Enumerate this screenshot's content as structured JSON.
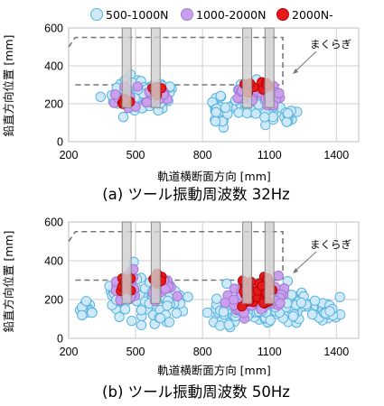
{
  "legend": [
    {
      "label": "500-1000N",
      "fill": "#cfe9f7",
      "stroke": "#57b4e0"
    },
    {
      "label": "1000-2000N",
      "fill": "#c9a0eb",
      "stroke": "#a678d6"
    },
    {
      "label": "2000N-",
      "fill": "#e41a1c",
      "stroke": "#c00000"
    }
  ],
  "colors": {
    "grid": "#cfcfcf",
    "pillar_fill": "#cfcfcf",
    "pillar_stroke": "#8a8a8a",
    "dashed": "#777777"
  },
  "chart_data": [
    {
      "type": "scatter",
      "caption": "(a) ツール振動周波数 32Hz",
      "xlabel": "軌道横断面方向 [mm]",
      "ylabel": "鉛直方向位置 [mm]",
      "xlim": [
        200,
        1500
      ],
      "ylim": [
        0,
        600
      ],
      "xticks": [
        200,
        500,
        800,
        1100,
        1400
      ],
      "yticks": [
        0,
        200,
        400,
        600
      ],
      "grid": true,
      "legend_position": "top",
      "annotation": "まくらぎ",
      "sleeper_outline_mm": {
        "x": [
          200,
          230,
          1160,
          1160
        ],
        "y": [
          500,
          550,
          550,
          300
        ],
        "base_x": [
          230,
          1160
        ],
        "base_y": 300
      },
      "pillars_x_mm": [
        [
          440,
          480
        ],
        [
          570,
          610
        ],
        [
          980,
          1020
        ],
        [
          1080,
          1120
        ]
      ],
      "pillar_y_mm": [
        180,
        600
      ],
      "series": [
        {
          "name": "500-1000N",
          "count": 200,
          "clusters": [
            [
              440,
              240,
              60,
              80
            ],
            [
              520,
              250,
              60,
              80
            ],
            [
              620,
              230,
              50,
              70
            ],
            [
              880,
              160,
              50,
              60
            ],
            [
              1000,
              220,
              60,
              80
            ],
            [
              1100,
              200,
              60,
              80
            ],
            [
              1190,
              140,
              40,
              40
            ]
          ]
        },
        {
          "name": "1000-2000N",
          "count": 70,
          "clusters": [
            [
              450,
              230,
              40,
              45
            ],
            [
              580,
              240,
              50,
              45
            ],
            [
              1000,
              250,
              50,
              45
            ],
            [
              1110,
              240,
              40,
              40
            ]
          ]
        },
        {
          "name": "2000N-",
          "count": 22,
          "clusters": [
            [
              450,
              230,
              25,
              40
            ],
            [
              590,
              280,
              25,
              40
            ],
            [
              1000,
              290,
              30,
              30
            ],
            [
              1080,
              290,
              30,
              30
            ]
          ]
        }
      ]
    },
    {
      "type": "scatter",
      "caption": "(b) ツール振動周波数 50Hz",
      "xlabel": "軌道横断面方向 [mm]",
      "ylabel": "鉛直方向位置 [mm]",
      "xlim": [
        200,
        1500
      ],
      "ylim": [
        0,
        600
      ],
      "xticks": [
        200,
        500,
        800,
        1100,
        1400
      ],
      "yticks": [
        0,
        200,
        400,
        600
      ],
      "grid": true,
      "legend_position": "top",
      "annotation": "まくらぎ",
      "sleeper_outline_mm": {
        "x": [
          200,
          230,
          1160,
          1160
        ],
        "y": [
          500,
          550,
          550,
          300
        ],
        "base_x": [
          230,
          1160
        ],
        "base_y": 300
      },
      "pillars_x_mm": [
        [
          440,
          480
        ],
        [
          570,
          610
        ],
        [
          980,
          1020
        ],
        [
          1080,
          1120
        ]
      ],
      "pillar_y_mm": [
        180,
        600
      ],
      "series": [
        {
          "name": "500-1000N",
          "count": 320,
          "clusters": [
            [
              450,
              220,
              80,
              90
            ],
            [
              620,
              190,
              80,
              90
            ],
            [
              900,
              140,
              60,
              70
            ],
            [
              1040,
              170,
              90,
              90
            ],
            [
              1200,
              160,
              70,
              80
            ],
            [
              1360,
              150,
              60,
              60
            ],
            [
              280,
              140,
              40,
              40
            ]
          ]
        },
        {
          "name": "1000-2000N",
          "count": 120,
          "clusters": [
            [
              470,
              260,
              60,
              60
            ],
            [
              620,
              260,
              60,
              50
            ],
            [
              1000,
              220,
              70,
              80
            ],
            [
              1120,
              220,
              60,
              60
            ]
          ]
        },
        {
          "name": "2000N-",
          "count": 60,
          "clusters": [
            [
              450,
              280,
              30,
              40
            ],
            [
              600,
              300,
              30,
              40
            ],
            [
              1010,
              230,
              50,
              70
            ],
            [
              1080,
              250,
              40,
              60
            ]
          ]
        }
      ]
    }
  ]
}
